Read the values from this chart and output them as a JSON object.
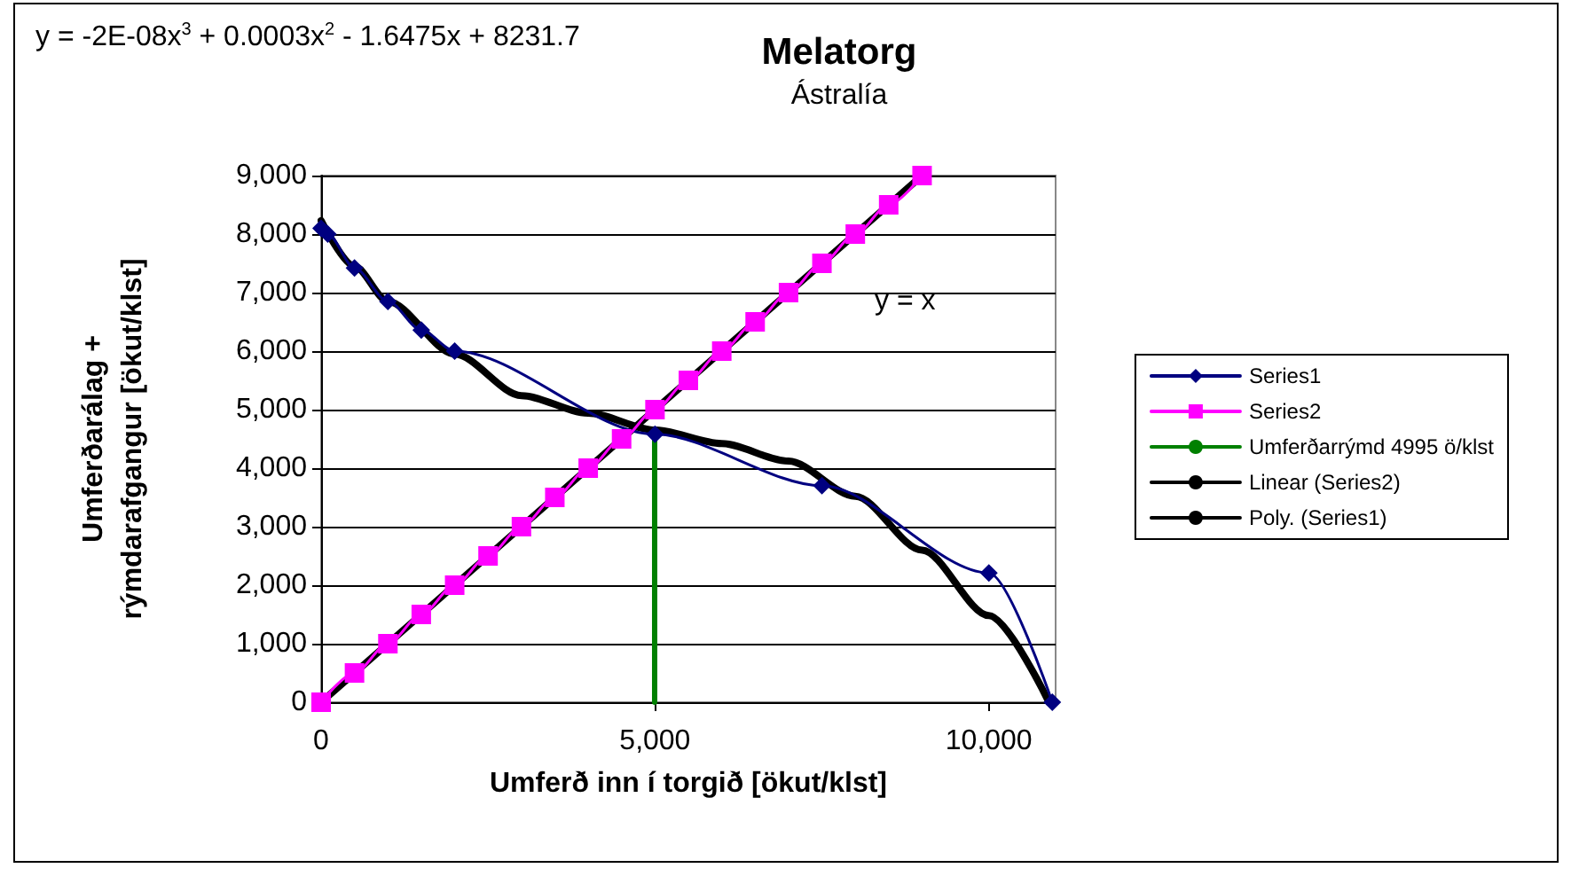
{
  "chart_data": {
    "type": "line",
    "title": "Melatorg",
    "subtitle": "Ástralía",
    "xlabel": "Umferð inn í torgið [ökut/klst]",
    "ylabel": "Umferðarálag +\nrýmdarafgangur [ökut/klst]",
    "xlim": [
      0,
      11000
    ],
    "xticks": [
      {
        "value": 0,
        "label": "0"
      },
      {
        "value": 5000,
        "label": "5,000"
      },
      {
        "value": 10000,
        "label": "10,000"
      }
    ],
    "ylim": [
      0,
      9000
    ],
    "yticks": [
      {
        "value": 0,
        "label": "0"
      },
      {
        "value": 1000,
        "label": "1,000"
      },
      {
        "value": 2000,
        "label": "2,000"
      },
      {
        "value": 3000,
        "label": "3,000"
      },
      {
        "value": 4000,
        "label": "4,000"
      },
      {
        "value": 5000,
        "label": "5,000"
      },
      {
        "value": 6000,
        "label": "6,000"
      },
      {
        "value": 7000,
        "label": "7,000"
      },
      {
        "value": 8000,
        "label": "8,000"
      },
      {
        "value": 9000,
        "label": "9,000"
      }
    ],
    "grid": "y",
    "legend": "right",
    "series": [
      {
        "name": "Series1",
        "color": "#000080",
        "marker": "diamond",
        "x": [
          0,
          100,
          500,
          1000,
          1500,
          2000,
          5000,
          7500,
          10000,
          10950
        ],
        "values": [
          8100,
          8000,
          7420,
          6850,
          6360,
          6000,
          4580,
          3700,
          2210,
          0
        ]
      },
      {
        "name": "Series2",
        "color": "#ff00ff",
        "marker": "square",
        "x": [
          0,
          500,
          1000,
          1500,
          2000,
          2500,
          3000,
          3500,
          4000,
          4500,
          5000,
          5500,
          6000,
          6500,
          7000,
          7500,
          8000,
          8500,
          9000
        ],
        "values": [
          0,
          500,
          1000,
          1500,
          2000,
          2500,
          3000,
          3500,
          4000,
          4500,
          5000,
          5500,
          6000,
          6500,
          7000,
          7500,
          8000,
          8500,
          9000
        ]
      },
      {
        "name": "Umferðarrýmd 4995 ö/klst",
        "color": "#008000",
        "marker": "none",
        "x": [
          4995,
          4995
        ],
        "values": [
          0,
          4580
        ]
      },
      {
        "name": "Linear (Series2)",
        "color": "#000000",
        "marker": "none",
        "x": [
          0,
          9000
        ],
        "values": [
          0,
          9000
        ]
      },
      {
        "name": "Poly. (Series1)",
        "color": "#000000",
        "marker": "none",
        "x": [
          0,
          500,
          1000,
          2000,
          3000,
          4000,
          5000,
          6000,
          7000,
          8000,
          9000,
          10000,
          10900
        ],
        "values": [
          8230,
          7450,
          6850,
          5950,
          5240,
          4940,
          4650,
          4420,
          4120,
          3520,
          2600,
          1480,
          0
        ]
      }
    ],
    "annotations": [
      "y = -2E-08x$^{3}$ + 0.0003x$^{2}$ - 1.6475x + 8231.7",
      "y = x"
    ]
  }
}
